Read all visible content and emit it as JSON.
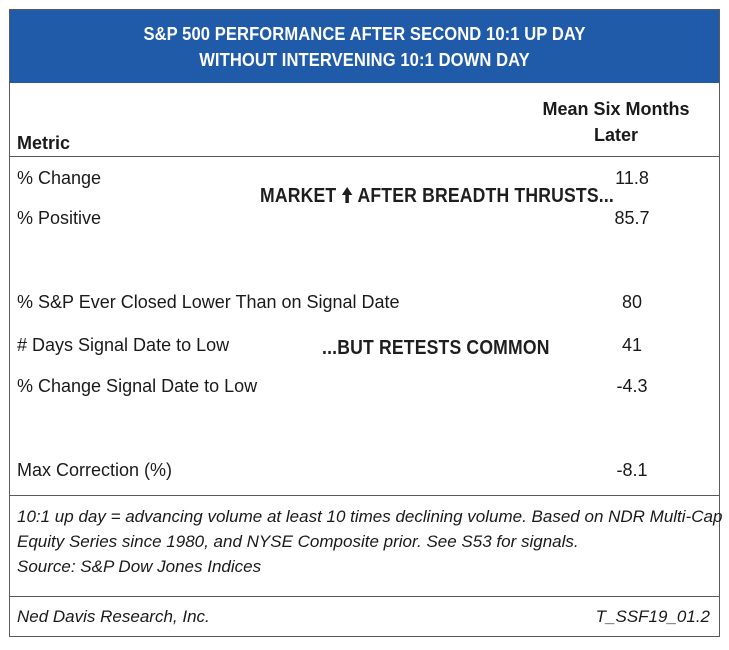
{
  "title": {
    "line1": "S&P 500 PERFORMANCE AFTER SECOND 10:1 UP DAY",
    "line2": "WITHOUT INTERVENING 10:1 DOWN DAY"
  },
  "header": {
    "metric": "Metric",
    "value_line1": "Mean Six Months",
    "value_line2": "Later"
  },
  "rows": [
    {
      "label": "% Change",
      "value": "11.8"
    },
    {
      "label": "% Positive",
      "value": "85.7"
    },
    {
      "label": "% S&P Ever Closed Lower Than on Signal Date",
      "value": "80"
    },
    {
      "label": "# Days Signal Date to Low",
      "value": "41"
    },
    {
      "label": "% Change Signal Date to Low",
      "value": "-4.3"
    },
    {
      "label": "Max Correction (%)",
      "value": "-8.1"
    }
  ],
  "callouts": {
    "first_pre": "MARKET",
    "first_icon": "up-arrow-icon",
    "first_post": "AFTER BREADTH THRUSTS...",
    "second": "...BUT RETESTS COMMON"
  },
  "notes": {
    "line1": "10:1 up day = advancing volume at least 10 times declining volume. Based on NDR Multi-Cap",
    "line2": "Equity Series since 1980, and NYSE Composite prior. See S53 for signals.",
    "line3": "Source: S&P Dow Jones Indices"
  },
  "footer": {
    "left": "Ned Davis Research, Inc.",
    "right": "T_SSF19_01.2"
  },
  "colors": {
    "title_background": "#1f5ba8",
    "title_text": "#ffffff",
    "border": "#5a5a5a"
  }
}
